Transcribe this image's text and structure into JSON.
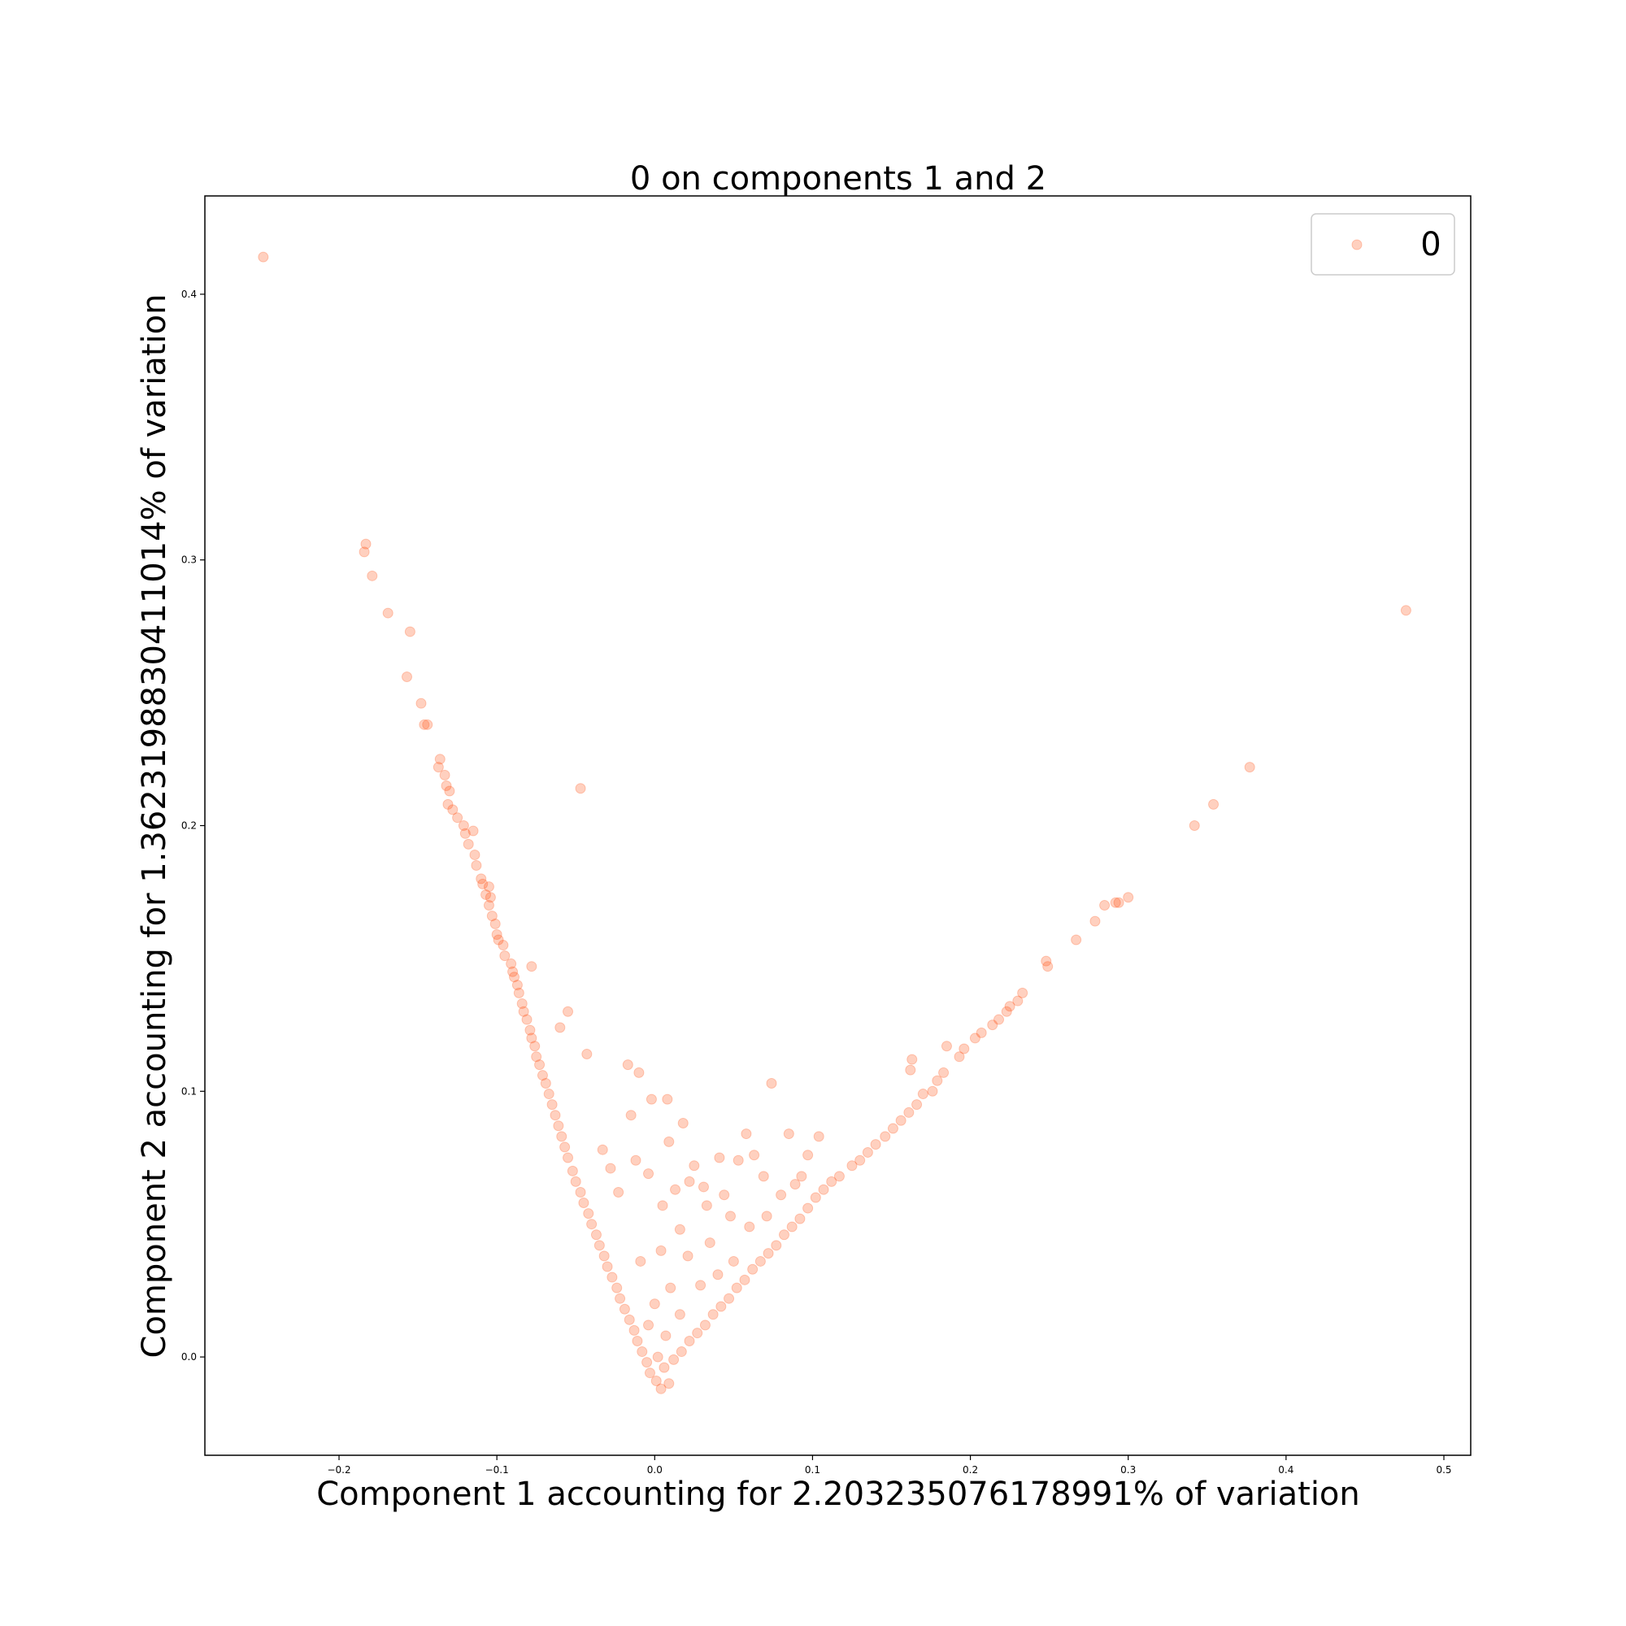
{
  "chart_data": {
    "type": "scatter",
    "title": "0 on components 1 and 2",
    "xlabel": "Component 1 accounting for 2.203235076178991% of variation",
    "ylabel": "Component 2 accounting for 1.3623198830411014% of variation",
    "xlim": [
      -0.285,
      0.517
    ],
    "ylim": [
      -0.037,
      0.437
    ],
    "x_ticks": [
      -0.2,
      -0.1,
      0.0,
      0.1,
      0.2,
      0.3,
      0.4,
      0.5
    ],
    "x_tick_labels": [
      "−0.2",
      "−0.1",
      "0.0",
      "0.1",
      "0.2",
      "0.3",
      "0.4",
      "0.5"
    ],
    "y_ticks": [
      0.0,
      0.1,
      0.2,
      0.3,
      0.4
    ],
    "y_tick_labels": [
      "0.0",
      "0.1",
      "0.2",
      "0.3",
      "0.4"
    ],
    "grid": false,
    "legend": {
      "position": "top-right",
      "entries": [
        "0"
      ]
    },
    "marker_color": "#ff4500",
    "marker_alpha": 0.25,
    "series": [
      {
        "name": "0",
        "points": [
          [
            -0.248,
            0.414
          ],
          [
            -0.183,
            0.306
          ],
          [
            -0.184,
            0.303
          ],
          [
            -0.179,
            0.294
          ],
          [
            -0.169,
            0.28
          ],
          [
            -0.155,
            0.273
          ],
          [
            -0.157,
            0.256
          ],
          [
            -0.148,
            0.246
          ],
          [
            -0.146,
            0.238
          ],
          [
            -0.144,
            0.238
          ],
          [
            -0.136,
            0.225
          ],
          [
            -0.137,
            0.222
          ],
          [
            -0.133,
            0.219
          ],
          [
            -0.132,
            0.215
          ],
          [
            -0.13,
            0.213
          ],
          [
            -0.131,
            0.208
          ],
          [
            -0.128,
            0.206
          ],
          [
            -0.125,
            0.203
          ],
          [
            -0.121,
            0.2
          ],
          [
            -0.12,
            0.197
          ],
          [
            -0.115,
            0.198
          ],
          [
            -0.118,
            0.193
          ],
          [
            -0.114,
            0.189
          ],
          [
            -0.113,
            0.185
          ],
          [
            -0.11,
            0.18
          ],
          [
            -0.109,
            0.178
          ],
          [
            -0.105,
            0.177
          ],
          [
            -0.107,
            0.174
          ],
          [
            -0.104,
            0.173
          ],
          [
            -0.105,
            0.17
          ],
          [
            -0.103,
            0.166
          ],
          [
            -0.101,
            0.163
          ],
          [
            -0.1,
            0.159
          ],
          [
            -0.099,
            0.157
          ],
          [
            -0.096,
            0.155
          ],
          [
            -0.095,
            0.151
          ],
          [
            -0.091,
            0.148
          ],
          [
            -0.09,
            0.145
          ],
          [
            -0.089,
            0.143
          ],
          [
            -0.087,
            0.14
          ],
          [
            -0.078,
            0.147
          ],
          [
            -0.086,
            0.137
          ],
          [
            -0.084,
            0.133
          ],
          [
            -0.083,
            0.13
          ],
          [
            -0.081,
            0.127
          ],
          [
            -0.079,
            0.123
          ],
          [
            -0.078,
            0.12
          ],
          [
            -0.076,
            0.117
          ],
          [
            -0.075,
            0.113
          ],
          [
            -0.073,
            0.11
          ],
          [
            -0.071,
            0.106
          ],
          [
            -0.069,
            0.103
          ],
          [
            -0.067,
            0.099
          ],
          [
            -0.065,
            0.095
          ],
          [
            -0.063,
            0.091
          ],
          [
            -0.061,
            0.087
          ],
          [
            -0.059,
            0.083
          ],
          [
            -0.057,
            0.079
          ],
          [
            -0.055,
            0.075
          ],
          [
            -0.052,
            0.07
          ],
          [
            -0.05,
            0.066
          ],
          [
            -0.047,
            0.062
          ],
          [
            -0.045,
            0.058
          ],
          [
            -0.042,
            0.054
          ],
          [
            -0.04,
            0.05
          ],
          [
            -0.037,
            0.046
          ],
          [
            -0.035,
            0.042
          ],
          [
            -0.032,
            0.038
          ],
          [
            -0.03,
            0.034
          ],
          [
            -0.027,
            0.03
          ],
          [
            -0.024,
            0.026
          ],
          [
            -0.022,
            0.022
          ],
          [
            -0.019,
            0.018
          ],
          [
            -0.016,
            0.014
          ],
          [
            -0.013,
            0.01
          ],
          [
            -0.011,
            0.006
          ],
          [
            -0.008,
            0.002
          ],
          [
            -0.005,
            -0.002
          ],
          [
            -0.003,
            -0.006
          ],
          [
            0.001,
            -0.009
          ],
          [
            -0.047,
            0.214
          ],
          [
            -0.055,
            0.13
          ],
          [
            -0.06,
            0.124
          ],
          [
            -0.043,
            0.114
          ],
          [
            -0.017,
            0.11
          ],
          [
            -0.01,
            0.107
          ],
          [
            -0.002,
            0.097
          ],
          [
            0.008,
            0.097
          ],
          [
            -0.015,
            0.091
          ],
          [
            0.018,
            0.088
          ],
          [
            0.074,
            0.103
          ],
          [
            0.063,
            0.076
          ],
          [
            0.058,
            0.084
          ],
          [
            0.041,
            0.075
          ],
          [
            0.053,
            0.074
          ],
          [
            0.069,
            0.068
          ],
          [
            0.085,
            0.084
          ],
          [
            0.093,
            0.068
          ],
          [
            0.097,
            0.076
          ],
          [
            0.104,
            0.083
          ],
          [
            0.125,
            0.072
          ],
          [
            0.117,
            0.068
          ],
          [
            0.112,
            0.066
          ],
          [
            0.107,
            0.063
          ],
          [
            0.102,
            0.06
          ],
          [
            0.097,
            0.056
          ],
          [
            0.092,
            0.052
          ],
          [
            0.087,
            0.049
          ],
          [
            0.082,
            0.046
          ],
          [
            0.077,
            0.042
          ],
          [
            0.072,
            0.039
          ],
          [
            0.067,
            0.036
          ],
          [
            0.062,
            0.033
          ],
          [
            0.057,
            0.029
          ],
          [
            0.052,
            0.026
          ],
          [
            0.047,
            0.022
          ],
          [
            0.042,
            0.019
          ],
          [
            0.037,
            0.016
          ],
          [
            0.032,
            0.012
          ],
          [
            0.027,
            0.009
          ],
          [
            0.022,
            0.006
          ],
          [
            0.017,
            0.002
          ],
          [
            0.012,
            -0.001
          ],
          [
            0.13,
            0.074
          ],
          [
            0.135,
            0.077
          ],
          [
            0.14,
            0.08
          ],
          [
            0.146,
            0.083
          ],
          [
            0.151,
            0.086
          ],
          [
            0.156,
            0.089
          ],
          [
            0.161,
            0.092
          ],
          [
            0.166,
            0.095
          ],
          [
            0.17,
            0.099
          ],
          [
            0.162,
            0.108
          ],
          [
            0.163,
            0.112
          ],
          [
            0.176,
            0.1
          ],
          [
            0.179,
            0.104
          ],
          [
            0.183,
            0.107
          ],
          [
            0.185,
            0.117
          ],
          [
            0.193,
            0.113
          ],
          [
            0.196,
            0.116
          ],
          [
            0.203,
            0.12
          ],
          [
            0.207,
            0.122
          ],
          [
            0.214,
            0.125
          ],
          [
            0.218,
            0.127
          ],
          [
            0.223,
            0.13
          ],
          [
            0.225,
            0.132
          ],
          [
            0.23,
            0.134
          ],
          [
            0.233,
            0.137
          ],
          [
            0.248,
            0.149
          ],
          [
            0.249,
            0.147
          ],
          [
            0.267,
            0.157
          ],
          [
            0.279,
            0.164
          ],
          [
            0.285,
            0.17
          ],
          [
            0.292,
            0.171
          ],
          [
            0.294,
            0.171
          ],
          [
            0.3,
            0.173
          ],
          [
            0.342,
            0.2
          ],
          [
            0.354,
            0.208
          ],
          [
            0.377,
            0.222
          ],
          [
            0.476,
            0.281
          ],
          [
            0.005,
            0.057
          ],
          [
            0.013,
            0.063
          ],
          [
            0.022,
            0.066
          ],
          [
            0.031,
            0.064
          ],
          [
            0.044,
            0.061
          ],
          [
            -0.004,
            0.069
          ],
          [
            0.025,
            0.072
          ],
          [
            0.009,
            0.081
          ],
          [
            0.033,
            0.057
          ],
          [
            0.048,
            0.053
          ],
          [
            -0.023,
            0.062
          ],
          [
            -0.028,
            0.071
          ],
          [
            -0.033,
            0.078
          ],
          [
            -0.012,
            0.074
          ],
          [
            0.016,
            0.048
          ],
          [
            0.004,
            0.04
          ],
          [
            0.021,
            0.038
          ],
          [
            0.035,
            0.043
          ],
          [
            0.06,
            0.049
          ],
          [
            0.071,
            0.053
          ],
          [
            0.08,
            0.061
          ],
          [
            0.089,
            0.065
          ],
          [
            0.04,
            0.031
          ],
          [
            0.029,
            0.027
          ],
          [
            0.05,
            0.036
          ],
          [
            -0.009,
            0.036
          ],
          [
            0.01,
            0.026
          ],
          [
            0.0,
            0.02
          ],
          [
            0.016,
            0.016
          ],
          [
            -0.004,
            0.012
          ],
          [
            0.007,
            0.008
          ],
          [
            0.002,
            0.0
          ],
          [
            0.006,
            -0.004
          ],
          [
            0.009,
            -0.01
          ],
          [
            0.004,
            -0.012
          ]
        ]
      }
    ]
  }
}
